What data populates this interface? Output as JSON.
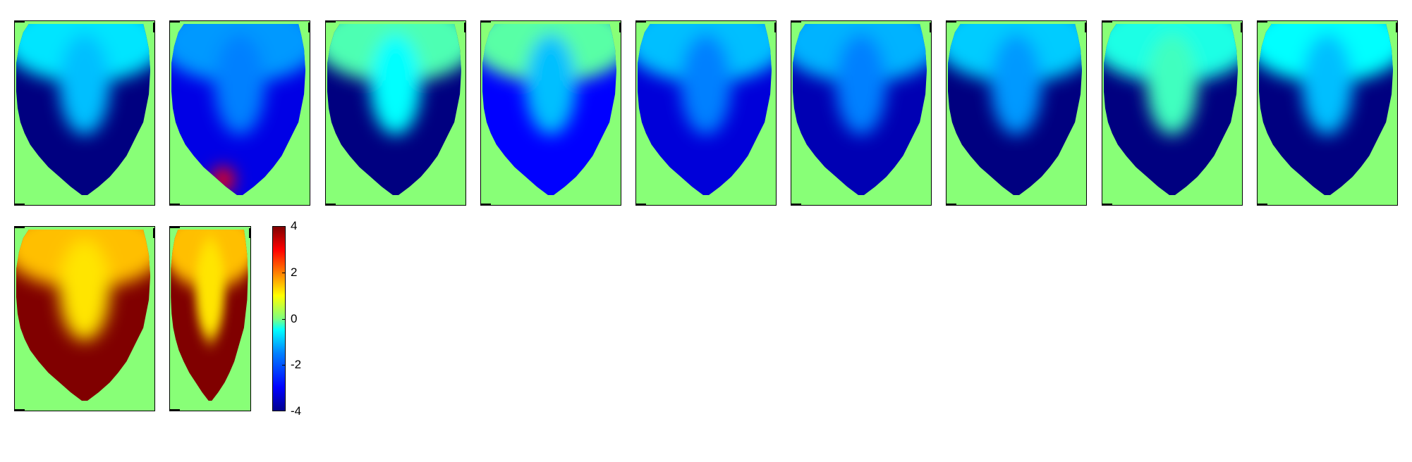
{
  "chart_data": {
    "type": "heatmap",
    "colormap": "jet",
    "background_color": "#88ff77",
    "panels": [
      {
        "row": 1,
        "col": 1,
        "regions": [
          {
            "zone": "top",
            "value": -1.2
          },
          {
            "zone": "upper-center",
            "value": -1.5
          },
          {
            "zone": "body",
            "value": -4
          }
        ]
      },
      {
        "row": 1,
        "col": 2,
        "regions": [
          {
            "zone": "top",
            "value": -1.8
          },
          {
            "zone": "upper-center",
            "value": -2.0
          },
          {
            "zone": "body",
            "value": -3.2
          },
          {
            "zone": "lower-left spot",
            "value": 3.0
          }
        ]
      },
      {
        "row": 1,
        "col": 3,
        "regions": [
          {
            "zone": "top",
            "value": -0.4
          },
          {
            "zone": "upper-center",
            "value": -1.0
          },
          {
            "zone": "body",
            "value": -4
          }
        ]
      },
      {
        "row": 1,
        "col": 4,
        "regions": [
          {
            "zone": "top",
            "value": -0.3
          },
          {
            "zone": "upper-center",
            "value": -1.5
          },
          {
            "zone": "body",
            "value": -3.0
          }
        ]
      },
      {
        "row": 1,
        "col": 5,
        "regions": [
          {
            "zone": "top",
            "value": -1.5
          },
          {
            "zone": "upper-center",
            "value": -2.0
          },
          {
            "zone": "body",
            "value": -3.3
          }
        ]
      },
      {
        "row": 1,
        "col": 6,
        "regions": [
          {
            "zone": "top",
            "value": -1.6
          },
          {
            "zone": "upper-center",
            "value": -2.0
          },
          {
            "zone": "body",
            "value": -3.6
          }
        ]
      },
      {
        "row": 1,
        "col": 7,
        "regions": [
          {
            "zone": "top",
            "value": -1.4
          },
          {
            "zone": "upper-center",
            "value": -1.8
          },
          {
            "zone": "body",
            "value": -4
          }
        ]
      },
      {
        "row": 1,
        "col": 8,
        "regions": [
          {
            "zone": "top",
            "value": -0.8
          },
          {
            "zone": "upper-center",
            "value": -0.5
          },
          {
            "zone": "body",
            "value": -4
          }
        ]
      },
      {
        "row": 1,
        "col": 9,
        "regions": [
          {
            "zone": "top",
            "value": -1.0
          },
          {
            "zone": "upper-center",
            "value": -1.5
          },
          {
            "zone": "body",
            "value": -4
          }
        ]
      },
      {
        "row": 2,
        "col": 1,
        "regions": [
          {
            "zone": "top",
            "value": 1.5
          },
          {
            "zone": "upper-center",
            "value": 1.2
          },
          {
            "zone": "body",
            "value": 4
          }
        ]
      },
      {
        "row": 2,
        "col": 2,
        "regions": [
          {
            "zone": "top",
            "value": 1.5
          },
          {
            "zone": "upper-center",
            "value": 1.2
          },
          {
            "zone": "body",
            "value": 4
          }
        ]
      }
    ],
    "colorbar": {
      "range": [
        -4,
        4
      ],
      "ticks": [
        "4",
        "2",
        "0",
        "-2",
        "-4"
      ]
    }
  }
}
